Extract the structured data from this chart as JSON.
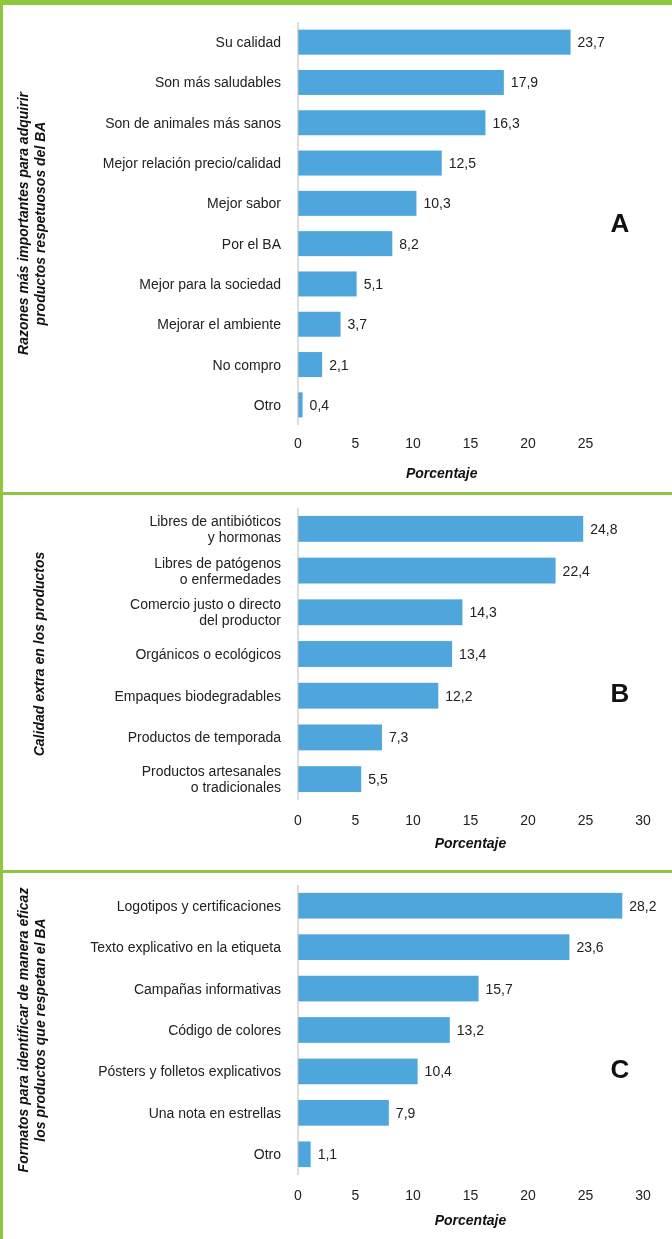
{
  "chart_data": [
    {
      "type": "bar",
      "orientation": "horizontal",
      "ylabel": "Razones más importantes para adquirir\nproductos respetuosos del BA",
      "xlabel": "Porcentaje",
      "color": "#4ea6dc",
      "categories": [
        "Su calidad",
        "Son más saludables",
        "Son de animales más sanos",
        "Mejor relación precio/calidad",
        "Mejor sabor",
        "Por el BA",
        "Mejor para la sociedad",
        "Mejorar el ambiente",
        "No compro",
        "Otro"
      ],
      "values": [
        23.7,
        17.9,
        16.3,
        12.5,
        10.3,
        8.2,
        5.1,
        3.7,
        2.1,
        0.4
      ],
      "value_labels": [
        "23,7",
        "17,9",
        "16,3",
        "12,5",
        "10,3",
        "8,2",
        "5,1",
        "3,7",
        "2,1",
        "0,4"
      ],
      "xlim": [
        0,
        25
      ],
      "xticks": [
        0,
        5,
        10,
        15,
        20,
        25
      ],
      "grid": false,
      "annotations": [
        "A"
      ]
    },
    {
      "type": "bar",
      "orientation": "horizontal",
      "ylabel": "Calidad extra en los productos",
      "xlabel": "Porcentaje",
      "color": "#4ea6dc",
      "categories": [
        "Libres de antibióticos\ny hormonas",
        "Libres de patógenos\no enfermedades",
        "Comercio justo o directo\ndel productor",
        "Orgánicos o ecológicos",
        "Empaques biodegradables",
        "Productos de temporada",
        "Productos artesanales\no tradicionales"
      ],
      "values": [
        24.8,
        22.4,
        14.3,
        13.4,
        12.2,
        7.3,
        5.5
      ],
      "value_labels": [
        "24,8",
        "22,4",
        "14,3",
        "13,4",
        "12,2",
        "7,3",
        "5,5"
      ],
      "xlim": [
        0,
        30
      ],
      "xticks": [
        0,
        5,
        10,
        15,
        20,
        25,
        30
      ],
      "grid": false,
      "annotations": [
        "B"
      ]
    },
    {
      "type": "bar",
      "orientation": "horizontal",
      "ylabel": "Formatos para identificar de manera eficaz\nlos productos que respetan el BA",
      "xlabel": "Porcentaje",
      "color": "#4ea6dc",
      "categories": [
        "Logotipos y certificaciones",
        "Texto explicativo en la etiqueta",
        "Campañas informativas",
        "Código de colores",
        "Pósters y folletos explicativos",
        "Una nota en estrellas",
        "Otro"
      ],
      "values": [
        28.2,
        23.6,
        15.7,
        13.2,
        10.4,
        7.9,
        1.1
      ],
      "value_labels": [
        "28,2",
        "23,6",
        "15,7",
        "13,2",
        "10,4",
        "7,9",
        "1,1"
      ],
      "xlim": [
        0,
        30
      ],
      "xticks": [
        0,
        5,
        10,
        15,
        20,
        25,
        30
      ],
      "grid": false,
      "annotations": [
        "C"
      ]
    }
  ]
}
